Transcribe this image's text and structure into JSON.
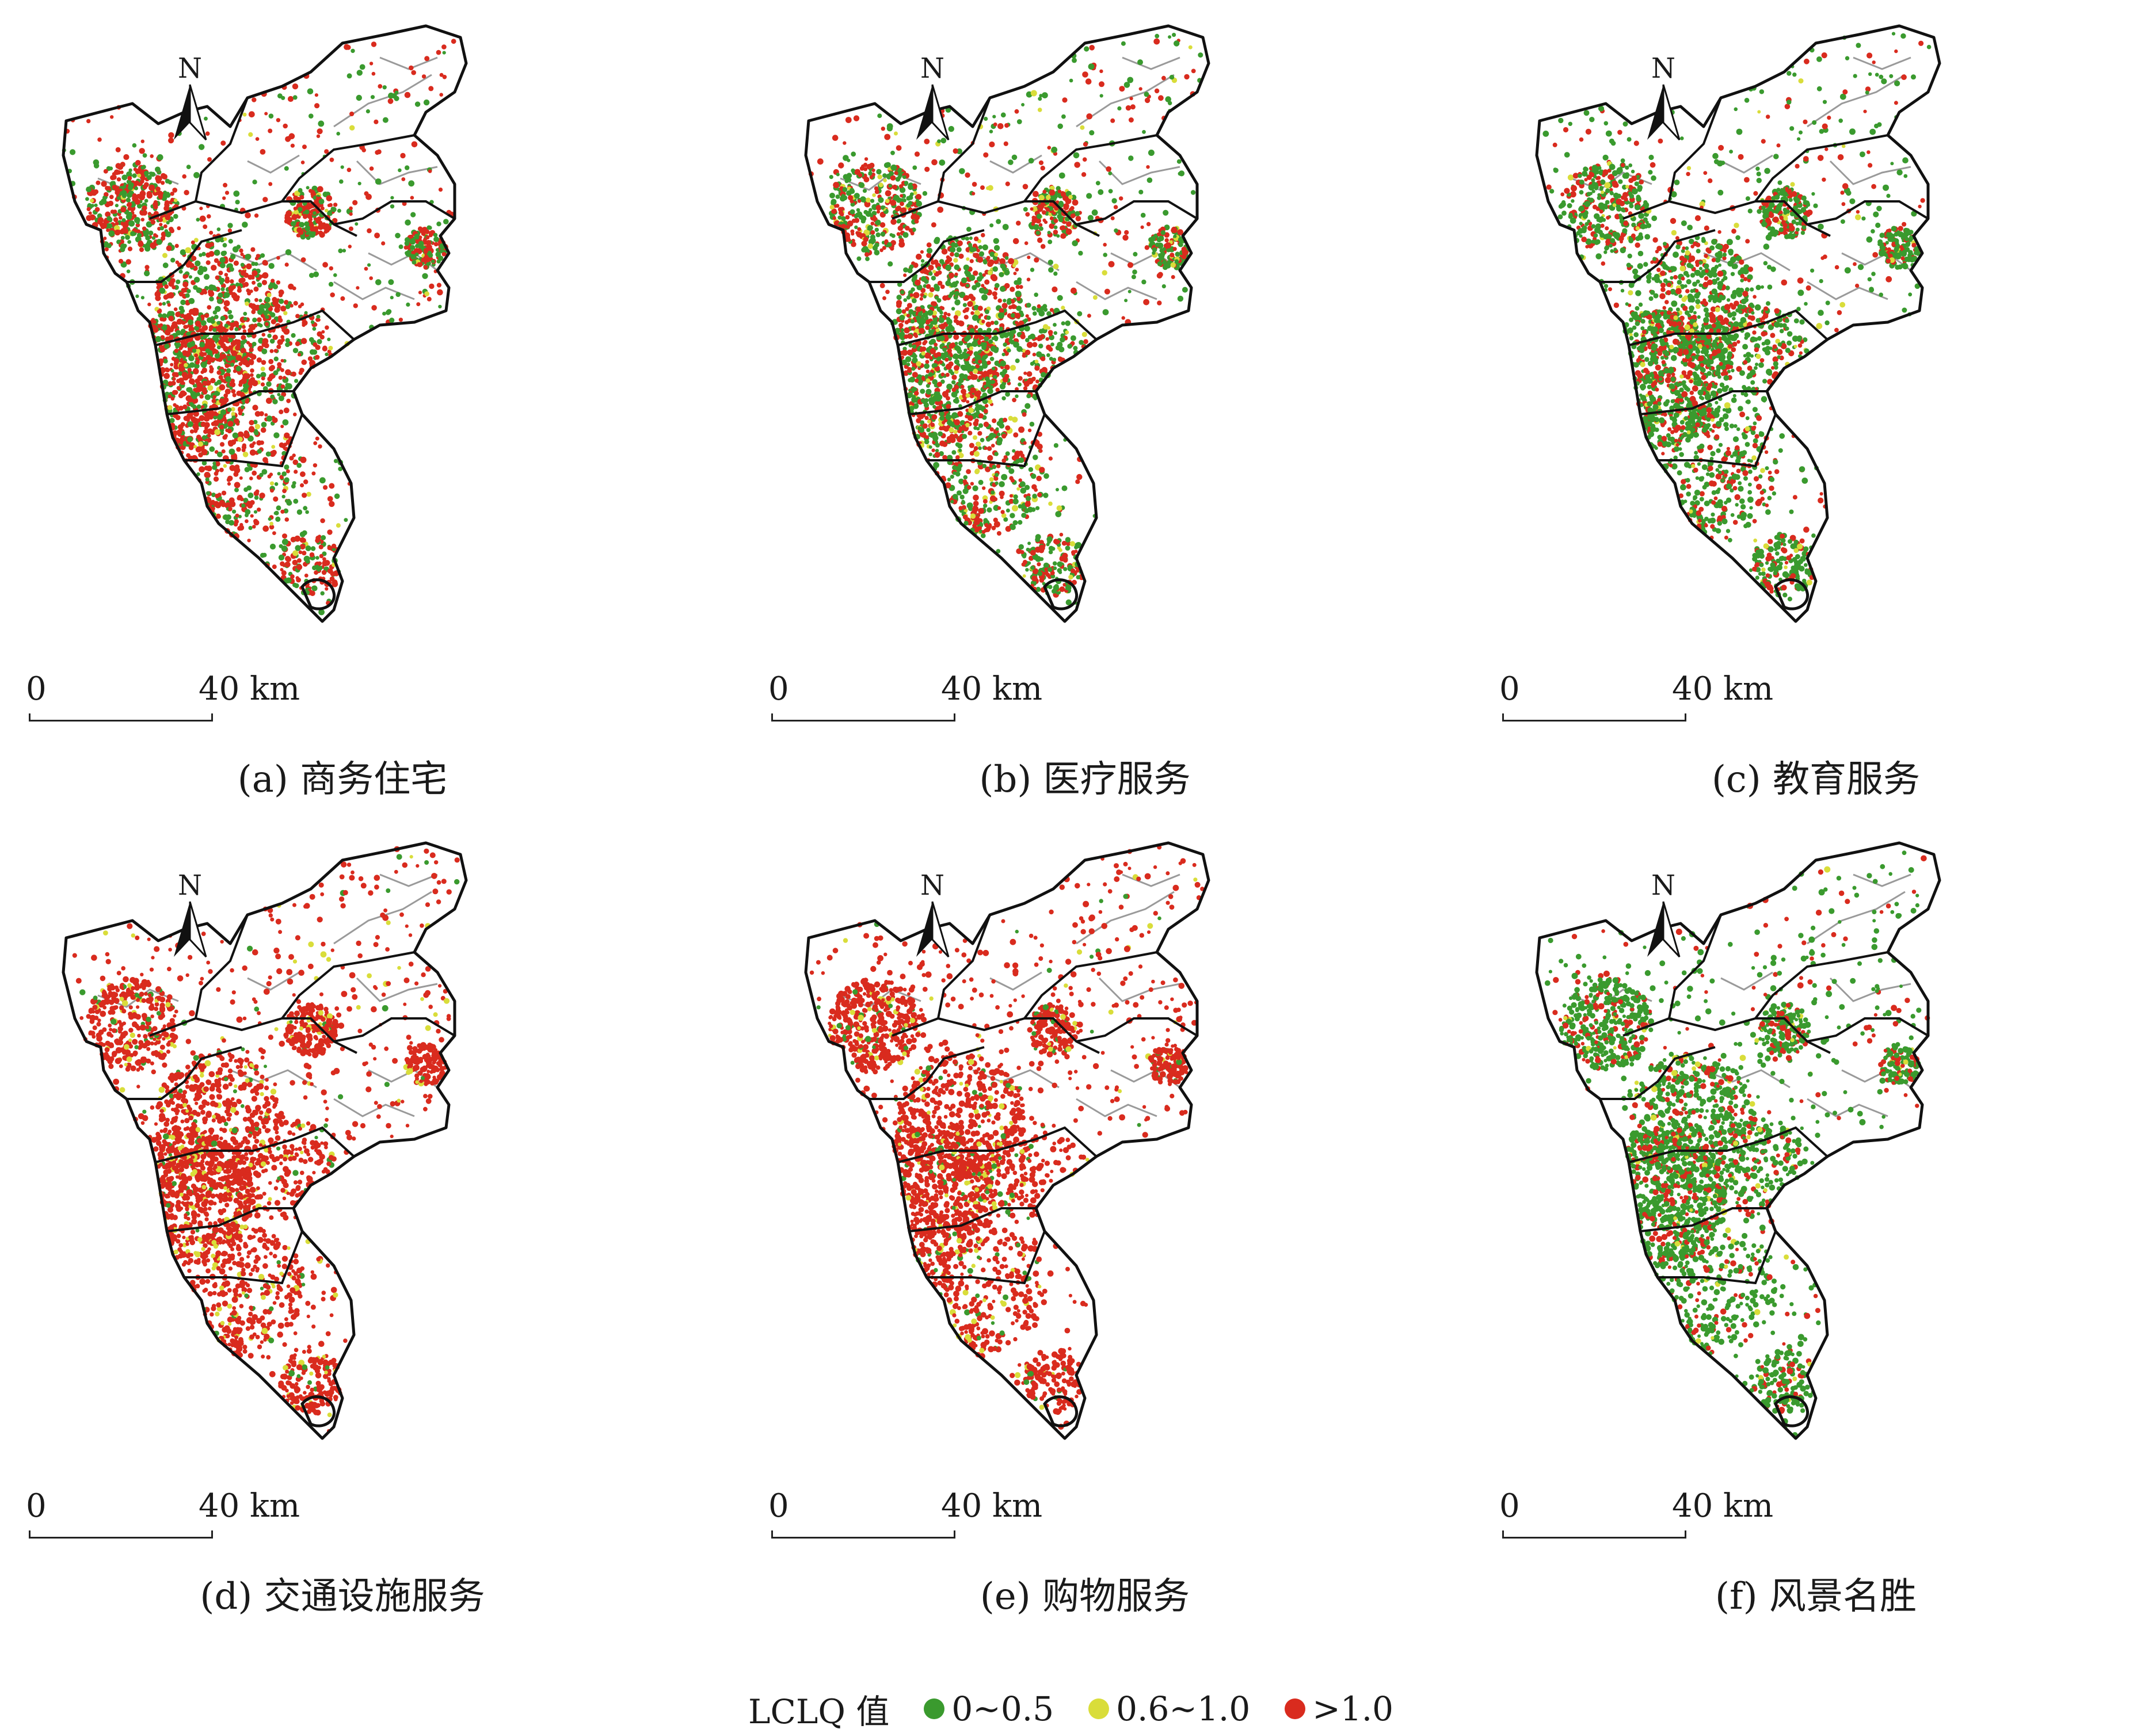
{
  "north_label": "N",
  "scale": {
    "zero": "0",
    "max": "40 km"
  },
  "panels": [
    {
      "caption": "(a) 商务住宅",
      "palette": {
        "green": 0.36,
        "yellow": 0.04,
        "red": 0.6
      }
    },
    {
      "caption": "(b) 医疗服务",
      "palette": {
        "green": 0.48,
        "yellow": 0.08,
        "red": 0.44
      }
    },
    {
      "caption": "(c) 教育服务",
      "palette": {
        "green": 0.62,
        "yellow": 0.04,
        "red": 0.34
      }
    },
    {
      "caption": "(d) 交通设施服务",
      "palette": {
        "green": 0.05,
        "yellow": 0.1,
        "red": 0.85
      }
    },
    {
      "caption": "(e) 购物服务",
      "palette": {
        "green": 0.07,
        "yellow": 0.06,
        "red": 0.87
      }
    },
    {
      "caption": "(f) 风景名胜",
      "palette": {
        "green": 0.72,
        "yellow": 0.03,
        "red": 0.25
      }
    }
  ],
  "legend": {
    "title": "LCLQ 值",
    "items": [
      {
        "label": "0~0.5",
        "color": "#3a9a2e"
      },
      {
        "label": "0.6~1.0",
        "color": "#d9dd3a"
      },
      {
        "label": ">1.0",
        "color": "#d92b1e"
      }
    ]
  },
  "colors": {
    "green": "#3a9a2e",
    "yellow": "#d9dd3a",
    "red": "#d92b1e",
    "district_line": "#9a9a9a",
    "outline": "#111111"
  }
}
